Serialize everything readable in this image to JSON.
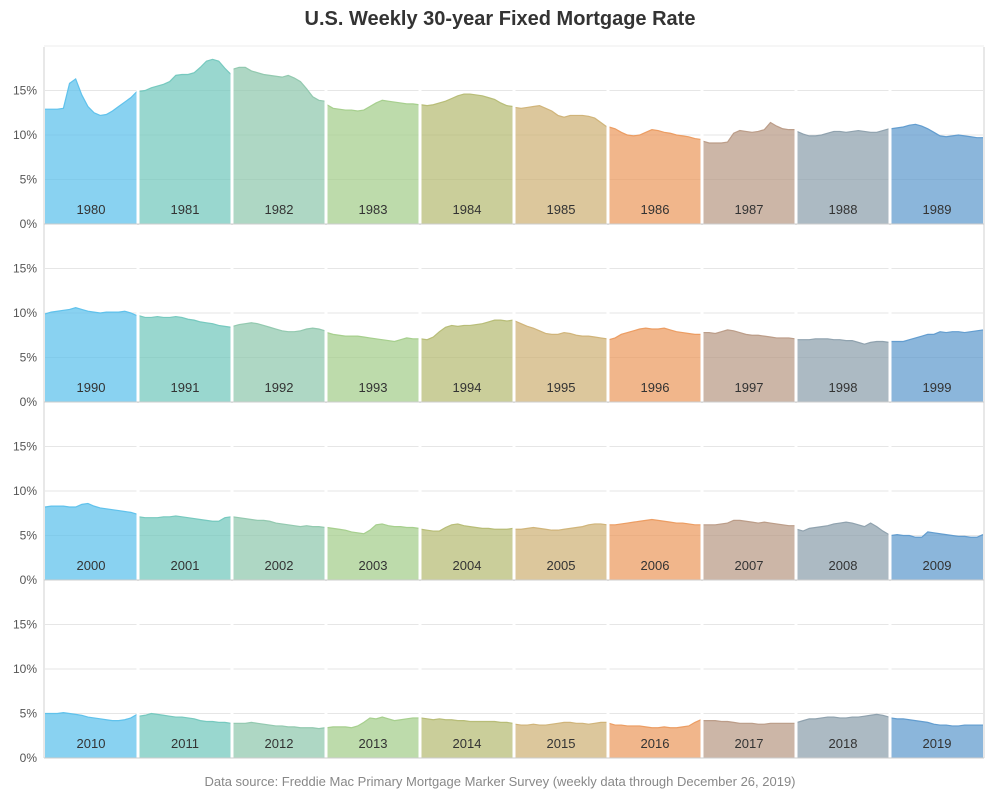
{
  "title": "U.S. Weekly 30-year Fixed Mortgage Rate",
  "source": "Data source: Freddie Mac Primary Mortgage Marker Survey (weekly data through December 26, 2019)",
  "chart_data": {
    "type": "area",
    "title": "U.S. Weekly 30-year Fixed Mortgage Rate",
    "layout": "small multiples: 4 rows (decades 1980s-2010s) x 10 columns (years)",
    "y_ticks": [
      "0%",
      "5%",
      "10%",
      "15%"
    ],
    "ylim": [
      0,
      20
    ],
    "grid": true,
    "palette": [
      "#5bc0eb",
      "#72c7bd",
      "#8fc7ad",
      "#a3cd8a",
      "#b5bb73",
      "#cfb276",
      "#eb9a5e",
      "#b99a85",
      "#8c9fac",
      "#5e9acd"
    ],
    "years": [
      {
        "year": "1980",
        "values": [
          12.9,
          12.9,
          12.9,
          13.0,
          15.8,
          16.3,
          14.5,
          13.2,
          12.5,
          12.2,
          12.3,
          12.7,
          13.2,
          13.7,
          14.2,
          14.9
        ]
      },
      {
        "year": "1981",
        "values": [
          14.9,
          15.0,
          15.3,
          15.5,
          15.7,
          16.0,
          16.7,
          16.8,
          16.8,
          17.0,
          17.6,
          18.3,
          18.5,
          18.3,
          17.5,
          16.8
        ]
      },
      {
        "year": "1982",
        "values": [
          17.4,
          17.6,
          17.6,
          17.2,
          17.0,
          16.8,
          16.7,
          16.6,
          16.5,
          16.7,
          16.4,
          16.0,
          15.2,
          14.3,
          13.9,
          13.8
        ]
      },
      {
        "year": "1983",
        "values": [
          13.4,
          13.0,
          12.9,
          12.8,
          12.8,
          12.7,
          12.8,
          13.2,
          13.6,
          13.9,
          13.8,
          13.7,
          13.6,
          13.5,
          13.5,
          13.4
        ]
      },
      {
        "year": "1984",
        "values": [
          13.4,
          13.3,
          13.4,
          13.6,
          13.8,
          14.1,
          14.4,
          14.6,
          14.6,
          14.5,
          14.4,
          14.2,
          14.0,
          13.6,
          13.3,
          13.2
        ]
      },
      {
        "year": "1985",
        "values": [
          13.1,
          13.0,
          13.1,
          13.2,
          13.3,
          13.0,
          12.7,
          12.2,
          12.0,
          12.2,
          12.2,
          12.2,
          12.1,
          11.9,
          11.4,
          10.9
        ]
      },
      {
        "year": "1986",
        "values": [
          10.9,
          10.7,
          10.3,
          10.0,
          9.9,
          10.0,
          10.3,
          10.6,
          10.5,
          10.3,
          10.2,
          10.0,
          9.9,
          9.8,
          9.6,
          9.5
        ]
      },
      {
        "year": "1987",
        "values": [
          9.3,
          9.1,
          9.1,
          9.1,
          9.2,
          10.2,
          10.5,
          10.4,
          10.3,
          10.4,
          10.6,
          11.4,
          11.0,
          10.7,
          10.6,
          10.6
        ]
      },
      {
        "year": "1988",
        "values": [
          10.4,
          10.1,
          9.9,
          9.9,
          10.0,
          10.2,
          10.4,
          10.4,
          10.3,
          10.4,
          10.5,
          10.4,
          10.3,
          10.3,
          10.5,
          10.7
        ]
      },
      {
        "year": "1989",
        "values": [
          10.7,
          10.8,
          10.9,
          11.1,
          11.2,
          11.0,
          10.7,
          10.3,
          9.9,
          9.8,
          9.9,
          10.0,
          9.9,
          9.8,
          9.7,
          9.7
        ]
      },
      {
        "year": "1990",
        "values": [
          9.9,
          10.1,
          10.2,
          10.3,
          10.4,
          10.6,
          10.4,
          10.2,
          10.1,
          10.0,
          10.1,
          10.1,
          10.1,
          10.2,
          10.0,
          9.7
        ]
      },
      {
        "year": "1991",
        "values": [
          9.7,
          9.5,
          9.5,
          9.6,
          9.5,
          9.5,
          9.6,
          9.5,
          9.3,
          9.2,
          9.0,
          8.9,
          8.8,
          8.6,
          8.5,
          8.4
        ]
      },
      {
        "year": "1992",
        "values": [
          8.5,
          8.7,
          8.8,
          8.9,
          8.8,
          8.6,
          8.4,
          8.2,
          8.0,
          7.9,
          7.9,
          8.0,
          8.2,
          8.3,
          8.2,
          8.0
        ]
      },
      {
        "year": "1993",
        "values": [
          7.8,
          7.6,
          7.5,
          7.4,
          7.4,
          7.4,
          7.3,
          7.2,
          7.1,
          7.0,
          6.9,
          6.8,
          7.0,
          7.2,
          7.1,
          7.1
        ]
      },
      {
        "year": "1994",
        "values": [
          7.1,
          7.0,
          7.3,
          7.9,
          8.4,
          8.6,
          8.5,
          8.6,
          8.6,
          8.7,
          8.8,
          9.0,
          9.2,
          9.2,
          9.1,
          9.2
        ]
      },
      {
        "year": "1995",
        "values": [
          9.1,
          8.8,
          8.5,
          8.3,
          8.0,
          7.7,
          7.6,
          7.6,
          7.8,
          7.7,
          7.5,
          7.4,
          7.4,
          7.3,
          7.2,
          7.1
        ]
      },
      {
        "year": "1996",
        "values": [
          7.0,
          7.2,
          7.6,
          7.8,
          8.0,
          8.2,
          8.3,
          8.2,
          8.2,
          8.3,
          8.1,
          7.9,
          7.8,
          7.7,
          7.6,
          7.6
        ]
      },
      {
        "year": "1997",
        "values": [
          7.8,
          7.8,
          7.7,
          7.9,
          8.1,
          8.0,
          7.8,
          7.6,
          7.5,
          7.5,
          7.4,
          7.3,
          7.2,
          7.2,
          7.2,
          7.1
        ]
      },
      {
        "year": "1998",
        "values": [
          7.0,
          7.0,
          7.0,
          7.1,
          7.1,
          7.1,
          7.0,
          7.0,
          6.9,
          6.9,
          6.7,
          6.5,
          6.7,
          6.8,
          6.8,
          6.7
        ]
      },
      {
        "year": "1999",
        "values": [
          6.8,
          6.8,
          6.8,
          7.0,
          7.2,
          7.4,
          7.6,
          7.6,
          7.9,
          7.8,
          7.9,
          7.9,
          7.8,
          7.9,
          8.0,
          8.1
        ]
      },
      {
        "year": "2000",
        "values": [
          8.2,
          8.3,
          8.3,
          8.3,
          8.2,
          8.2,
          8.5,
          8.6,
          8.3,
          8.1,
          8.0,
          7.9,
          7.8,
          7.7,
          7.6,
          7.4
        ]
      },
      {
        "year": "2001",
        "values": [
          7.1,
          7.0,
          7.0,
          7.0,
          7.1,
          7.1,
          7.2,
          7.1,
          7.0,
          6.9,
          6.8,
          6.7,
          6.6,
          6.6,
          7.0,
          7.1
        ]
      },
      {
        "year": "2002",
        "values": [
          7.1,
          7.0,
          6.9,
          6.8,
          6.7,
          6.7,
          6.6,
          6.4,
          6.3,
          6.2,
          6.1,
          6.0,
          6.1,
          6.0,
          6.0,
          5.9
        ]
      },
      {
        "year": "2003",
        "values": [
          5.9,
          5.8,
          5.7,
          5.6,
          5.4,
          5.3,
          5.2,
          5.6,
          6.2,
          6.3,
          6.1,
          6.0,
          6.0,
          5.9,
          5.9,
          5.8
        ]
      },
      {
        "year": "2004",
        "values": [
          5.7,
          5.6,
          5.5,
          5.5,
          5.9,
          6.2,
          6.3,
          6.1,
          6.0,
          5.9,
          5.8,
          5.8,
          5.7,
          5.7,
          5.7,
          5.8
        ]
      },
      {
        "year": "2005",
        "values": [
          5.7,
          5.7,
          5.8,
          5.9,
          5.8,
          5.7,
          5.6,
          5.6,
          5.7,
          5.8,
          5.9,
          6.0,
          6.2,
          6.3,
          6.3,
          6.2
        ]
      },
      {
        "year": "2006",
        "values": [
          6.2,
          6.2,
          6.3,
          6.4,
          6.5,
          6.6,
          6.7,
          6.8,
          6.7,
          6.6,
          6.5,
          6.4,
          6.4,
          6.3,
          6.2,
          6.2
        ]
      },
      {
        "year": "2007",
        "values": [
          6.2,
          6.2,
          6.2,
          6.3,
          6.4,
          6.7,
          6.7,
          6.6,
          6.5,
          6.4,
          6.5,
          6.4,
          6.3,
          6.2,
          6.1,
          6.1
        ]
      },
      {
        "year": "2008",
        "values": [
          5.7,
          5.5,
          5.8,
          5.9,
          6.0,
          6.1,
          6.3,
          6.4,
          6.5,
          6.4,
          6.2,
          6.0,
          6.4,
          6.0,
          5.5,
          5.1
        ]
      },
      {
        "year": "2009",
        "values": [
          5.0,
          5.1,
          5.0,
          5.0,
          4.8,
          4.8,
          5.4,
          5.3,
          5.2,
          5.1,
          5.0,
          4.9,
          4.9,
          4.8,
          4.8,
          5.1
        ]
      },
      {
        "year": "2010",
        "values": [
          5.0,
          5.0,
          5.0,
          5.1,
          5.0,
          4.9,
          4.8,
          4.6,
          4.5,
          4.4,
          4.3,
          4.2,
          4.2,
          4.3,
          4.5,
          4.9
        ]
      },
      {
        "year": "2011",
        "values": [
          4.7,
          4.8,
          5.0,
          4.9,
          4.8,
          4.7,
          4.6,
          4.6,
          4.5,
          4.4,
          4.2,
          4.1,
          4.1,
          4.0,
          4.0,
          3.9
        ]
      },
      {
        "year": "2012",
        "values": [
          3.9,
          3.9,
          3.9,
          4.0,
          3.9,
          3.8,
          3.7,
          3.6,
          3.6,
          3.5,
          3.5,
          3.4,
          3.4,
          3.4,
          3.3,
          3.4
        ]
      },
      {
        "year": "2013",
        "values": [
          3.4,
          3.5,
          3.5,
          3.5,
          3.4,
          3.6,
          4.0,
          4.5,
          4.4,
          4.6,
          4.4,
          4.2,
          4.3,
          4.4,
          4.5,
          4.5
        ]
      },
      {
        "year": "2014",
        "values": [
          4.5,
          4.4,
          4.3,
          4.4,
          4.3,
          4.3,
          4.2,
          4.2,
          4.1,
          4.1,
          4.1,
          4.1,
          4.1,
          4.0,
          4.0,
          3.9
        ]
      },
      {
        "year": "2015",
        "values": [
          3.8,
          3.7,
          3.7,
          3.8,
          3.7,
          3.7,
          3.8,
          3.9,
          4.0,
          4.0,
          3.9,
          3.9,
          3.8,
          3.9,
          4.0,
          4.0
        ]
      },
      {
        "year": "2016",
        "values": [
          3.9,
          3.7,
          3.7,
          3.6,
          3.6,
          3.6,
          3.5,
          3.4,
          3.4,
          3.5,
          3.4,
          3.4,
          3.5,
          3.6,
          4.0,
          4.3
        ]
      },
      {
        "year": "2017",
        "values": [
          4.2,
          4.2,
          4.2,
          4.1,
          4.1,
          4.0,
          3.9,
          3.9,
          3.9,
          3.8,
          3.8,
          3.9,
          3.9,
          3.9,
          3.9,
          3.9
        ]
      },
      {
        "year": "2018",
        "values": [
          4.0,
          4.2,
          4.4,
          4.4,
          4.5,
          4.6,
          4.6,
          4.5,
          4.5,
          4.6,
          4.6,
          4.7,
          4.8,
          4.9,
          4.8,
          4.6
        ]
      },
      {
        "year": "2019",
        "values": [
          4.5,
          4.4,
          4.4,
          4.3,
          4.2,
          4.1,
          4.0,
          3.8,
          3.7,
          3.7,
          3.6,
          3.6,
          3.7,
          3.7,
          3.7,
          3.7
        ]
      }
    ]
  }
}
